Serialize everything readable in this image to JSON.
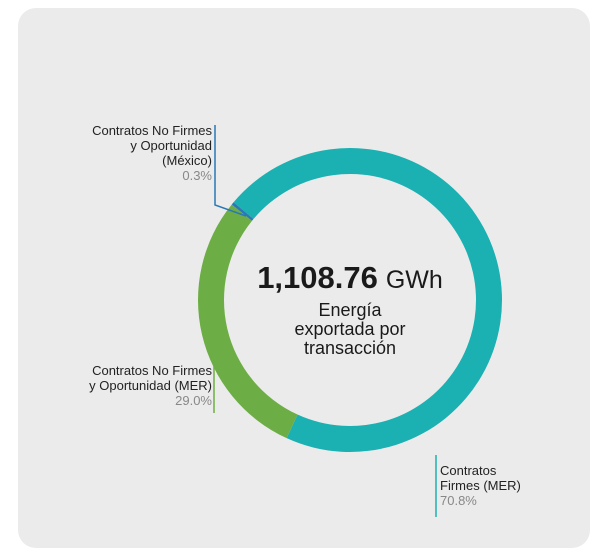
{
  "chart_data": {
    "type": "donut",
    "categories": [
      "Contratos Firmes (MER)",
      "Contratos No Firmes y Oportunidad (MER)",
      "Contratos No Firmes y Oportunidad (México)"
    ],
    "values": [
      70.8,
      29.0,
      0.3
    ],
    "value_labels": [
      "70.8%",
      "29.0%",
      "0.3%"
    ],
    "colors": [
      "#1bb0b2",
      "#6cae45",
      "#2b78b6"
    ],
    "total_label": "1,108.76",
    "total_unit": "GWh",
    "center_text": [
      "Energía",
      "exportada por",
      "transacción"
    ]
  }
}
